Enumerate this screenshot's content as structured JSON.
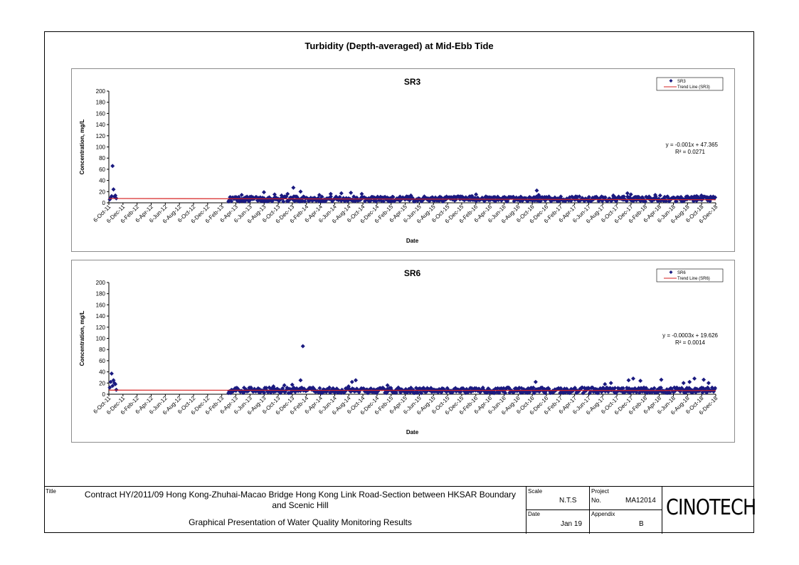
{
  "page": {
    "title": "Turbidity (Depth-averaged) at Mid-Ebb Tide"
  },
  "colors": {
    "marker": "#1a1a80",
    "trend": "#d62020",
    "panel_border": "#8c8c8c"
  },
  "chart_data": [
    {
      "type": "scatter",
      "title": "SR3",
      "xlabel": "Date",
      "ylabel": "Concentration, mg/L",
      "ylim": [
        0,
        200
      ],
      "y_ticks": [
        0,
        20,
        40,
        60,
        80,
        100,
        120,
        140,
        160,
        180,
        200
      ],
      "x_tick_labels": [
        "6-Oct-11",
        "6-Dec-11",
        "6-Feb-12",
        "6-Apr-12",
        "6-Jun-12",
        "6-Aug-12",
        "6-Oct-12",
        "6-Dec-12",
        "6-Feb-13",
        "6-Apr-13",
        "6-Jun-13",
        "6-Aug-13",
        "6-Oct-13",
        "6-Dec-13",
        "6-Feb-14",
        "6-Apr-14",
        "6-Jun-14",
        "6-Aug-14",
        "6-Oct-14",
        "6-Dec-14",
        "6-Feb-15",
        "6-Apr-15",
        "6-Jun-15",
        "6-Aug-15",
        "6-Oct-15",
        "6-Dec-15",
        "6-Feb-16",
        "6-Apr-16",
        "6-Jun-16",
        "6-Aug-16",
        "6-Oct-16",
        "6-Dec-16",
        "6-Feb-17",
        "6-Apr-17",
        "6-Jun-17",
        "6-Aug-17",
        "6-Oct-17",
        "6-Dec-17",
        "6-Feb-18",
        "6-Apr-18",
        "6-Jun-18",
        "6-Aug-18",
        "6-Oct-18",
        "6-Dec-18"
      ],
      "legend": {
        "position": "top-right",
        "entries": [
          "SR3",
          "Trend Line (SR3)"
        ]
      },
      "equation": "y = -0.001x + 47.365",
      "r_squared": "R² = 0.0271",
      "series": [
        {
          "name": "SR3",
          "kind": "points",
          "x": [
            "2011-10-10",
            "2011-10-14",
            "2011-10-18",
            "2011-10-22",
            "2011-10-26",
            "2011-10-30",
            "2011-11-03",
            "2011-11-07",
            "2013-03-10",
            "2013-05-01",
            "2013-06-20",
            "2013-08-05",
            "2013-09-20",
            "2013-10-20",
            "2013-11-15",
            "2013-12-10",
            "2014-01-10",
            "2014-04-01",
            "2014-05-20",
            "2014-07-05",
            "2014-08-15",
            "2014-10-01",
            "2015-03-15",
            "2015-05-01",
            "2016-01-20",
            "2016-02-06",
            "2016-10-25",
            "2016-11-02",
            "2017-09-20",
            "2017-11-20",
            "2017-12-05",
            "2018-03-20",
            "2018-04-10",
            "2018-09-15",
            "2018-10-05",
            "2018-11-25"
          ],
          "y": [
            6,
            9,
            12,
            66,
            24,
            11,
            13,
            8,
            5,
            14,
            9,
            19,
            15,
            13,
            16,
            27,
            20,
            14,
            16,
            17,
            18,
            16,
            11,
            13,
            12,
            15,
            22,
            14,
            13,
            17,
            15,
            14,
            13,
            12,
            13,
            11
          ]
        },
        {
          "name": "Trend Line (SR3)",
          "kind": "line",
          "x": [
            "2011-10-06",
            "2018-12-06"
          ],
          "y": [
            7.7,
            5.5
          ]
        }
      ]
    },
    {
      "type": "scatter",
      "title": "SR6",
      "xlabel": "Date",
      "ylabel": "Concentration, mg/L",
      "ylim": [
        0,
        200
      ],
      "y_ticks": [
        0,
        20,
        40,
        60,
        80,
        100,
        120,
        140,
        160,
        180,
        200
      ],
      "x_tick_labels": [
        "6-Oct-11",
        "6-Dec-11",
        "6-Feb-12",
        "6-Apr-12",
        "6-Jun-12",
        "6-Aug-12",
        "6-Oct-12",
        "6-Dec-12",
        "6-Feb-13",
        "6-Apr-13",
        "6-Jun-13",
        "6-Aug-13",
        "6-Oct-13",
        "6-Dec-13",
        "6-Feb-14",
        "6-Apr-14",
        "6-Jun-14",
        "6-Aug-14",
        "6-Oct-14",
        "6-Dec-14",
        "6-Feb-15",
        "6-Apr-15",
        "6-Jun-15",
        "6-Aug-15",
        "6-Oct-15",
        "6-Dec-15",
        "6-Feb-16",
        "6-Apr-16",
        "6-Jun-16",
        "6-Aug-16",
        "6-Oct-16",
        "6-Dec-16",
        "6-Feb-17",
        "6-Apr-17",
        "6-Jun-17",
        "6-Aug-17",
        "6-Oct-17",
        "6-Dec-17",
        "6-Feb-18",
        "6-Apr-18",
        "6-Jun-18",
        "6-Aug-18",
        "6-Oct-18",
        "6-Dec-18"
      ],
      "legend": {
        "position": "top-right",
        "entries": [
          "SR6",
          "Trend Line (SR6)"
        ]
      },
      "equation": "y = -0.0003x + 19.626",
      "r_squared": "R² = 0.0014",
      "series": [
        {
          "name": "SR6",
          "kind": "points",
          "x": [
            "2011-10-10",
            "2011-10-14",
            "2011-10-18",
            "2011-10-22",
            "2011-10-26",
            "2011-10-30",
            "2011-11-03",
            "2011-11-07",
            "2013-03-10",
            "2013-06-10",
            "2013-09-15",
            "2013-11-01",
            "2013-12-05",
            "2014-01-10",
            "2014-01-20",
            "2014-08-05",
            "2014-08-20",
            "2014-09-05",
            "2015-01-20",
            "2016-10-20",
            "2017-08-15",
            "2017-09-10",
            "2017-11-25",
            "2017-12-15",
            "2018-01-15",
            "2018-04-15",
            "2018-07-20",
            "2018-08-15",
            "2018-09-05",
            "2018-10-15",
            "2018-11-05"
          ],
          "y": [
            12,
            22,
            37,
            15,
            25,
            20,
            18,
            8,
            5,
            12,
            14,
            16,
            17,
            25,
            86,
            14,
            22,
            25,
            16,
            22,
            18,
            20,
            25,
            28,
            24,
            26,
            20,
            22,
            28,
            26,
            20
          ]
        },
        {
          "name": "Trend Line (SR6)",
          "kind": "line",
          "x": [
            "2011-10-06",
            "2018-12-06"
          ],
          "y": [
            7.3,
            6.6
          ]
        }
      ]
    }
  ],
  "titleblock": {
    "title_label": "Title",
    "title_line1": "Contract HY/2011/09 Hong Kong-Zhuhai-Macao Bridge Hong Kong Link Road-Section between HKSAR Boundary",
    "title_line2": "and Scenic Hill",
    "subtitle": "Graphical Presentation of Water Quality Monitoring Results",
    "scale_label": "Scale",
    "scale_value": "N.T.S",
    "project_label": "Project",
    "project_no_label": "No.",
    "project_no_value": "MA12014",
    "date_label": "Date",
    "date_value": "Jan 19",
    "appendix_label": "Appendix",
    "appendix_value": "B",
    "company": "CINOTECH"
  }
}
